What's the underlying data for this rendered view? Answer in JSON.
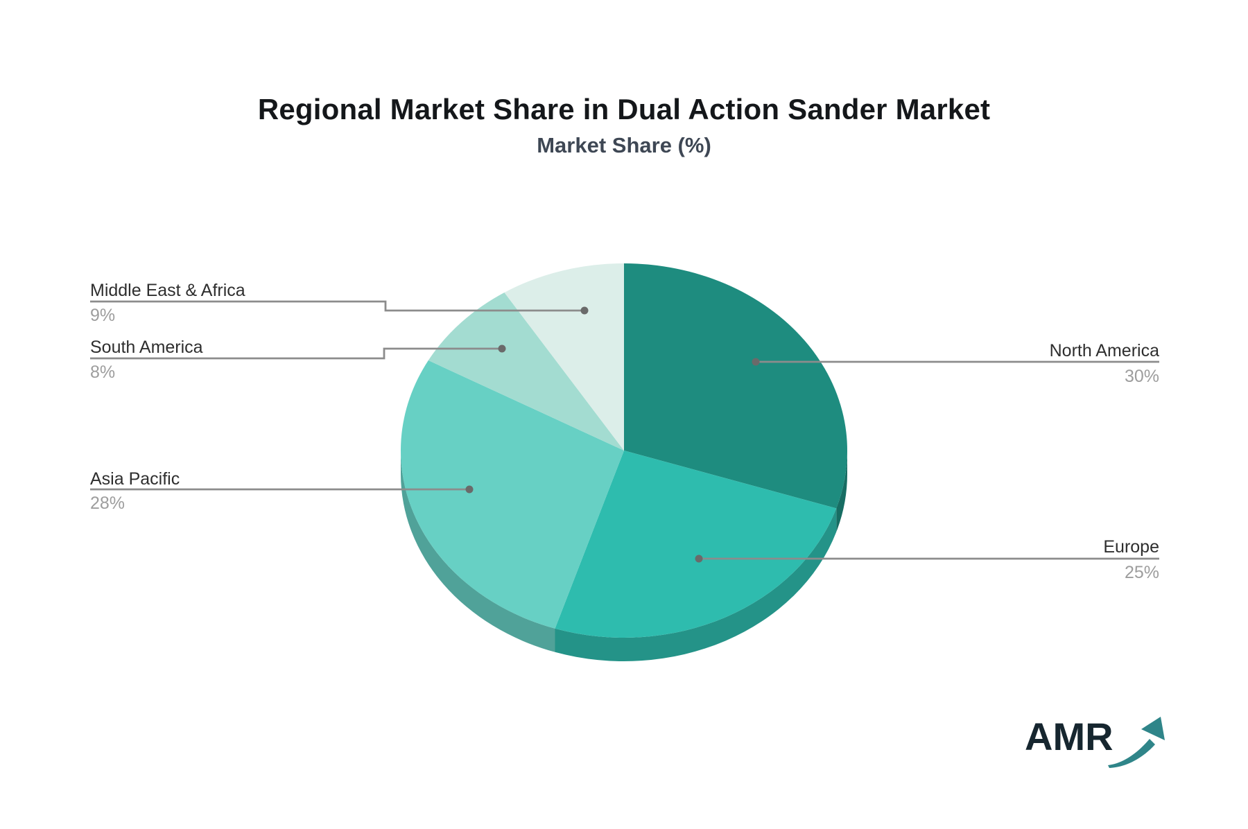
{
  "header": {
    "title": "Regional Market Share in Dual Action Sander Market",
    "subtitle": "Market Share (%)"
  },
  "chart_data": {
    "type": "pie",
    "style": "3d",
    "title": "Regional Market Share in Dual Action Sander Market",
    "subtitle": "Market Share (%)",
    "unit": "%",
    "start_angle": "12 o'clock",
    "direction": "clockwise",
    "legend_position": "leader-line callout labels",
    "regions": [
      "North America",
      "Europe",
      "Asia Pacific",
      "South America",
      "Middle East & Africa"
    ],
    "values": [
      30,
      25,
      28,
      8,
      9
    ],
    "labels": [
      "30%",
      "25%",
      "28%",
      "8%",
      "9%"
    ],
    "colors": [
      "#1e8c7f",
      "#2ebcae",
      "#67d0c4",
      "#a3dcd1",
      "#dceee9"
    ]
  },
  "colors": {
    "background": "#ffffff",
    "title": "#14171a",
    "subtitle": "#3e4754",
    "label_text": "#2e2e2e",
    "percent_text": "#9d9d9d",
    "leader_line": "#8c8c8c",
    "leader_dot": "#6a6a6a"
  },
  "logo": {
    "text": "AMR",
    "text_color": "#16262f",
    "arrow_color": "#2f8589"
  }
}
